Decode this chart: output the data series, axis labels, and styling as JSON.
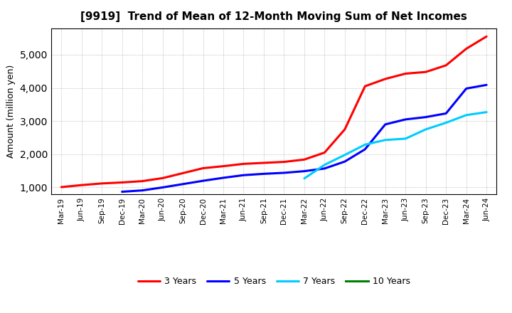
{
  "title": "[9919]  Trend of Mean of 12-Month Moving Sum of Net Incomes",
  "ylabel": "Amount (million yen)",
  "x_labels": [
    "Mar-19",
    "Jun-19",
    "Sep-19",
    "Dec-19",
    "Mar-20",
    "Jun-20",
    "Sep-20",
    "Dec-20",
    "Mar-21",
    "Jun-21",
    "Sep-21",
    "Dec-21",
    "Mar-22",
    "Jun-22",
    "Sep-22",
    "Dec-22",
    "Mar-23",
    "Jun-23",
    "Sep-23",
    "Dec-23",
    "Mar-24",
    "Jun-24"
  ],
  "series": {
    "3 Years": {
      "color": "#FF0000",
      "data_x": [
        0,
        1,
        2,
        3,
        4,
        5,
        6,
        7,
        8,
        9,
        10,
        11,
        12,
        13,
        14,
        15,
        16,
        17,
        18,
        19,
        20,
        21
      ],
      "data_y": [
        1010,
        1070,
        1120,
        1150,
        1190,
        1280,
        1430,
        1580,
        1640,
        1710,
        1740,
        1770,
        1840,
        2050,
        2750,
        4050,
        4270,
        4430,
        4480,
        4680,
        5180,
        5550
      ]
    },
    "5 Years": {
      "color": "#0000FF",
      "data_x": [
        3,
        4,
        5,
        6,
        7,
        8,
        9,
        10,
        11,
        12,
        13,
        14,
        15,
        16,
        17,
        18,
        19,
        20,
        21
      ],
      "data_y": [
        870,
        910,
        1000,
        1100,
        1200,
        1290,
        1370,
        1410,
        1440,
        1490,
        1570,
        1780,
        2150,
        2900,
        3050,
        3120,
        3230,
        3980,
        4090
      ]
    },
    "7 Years": {
      "color": "#00CCFF",
      "data_x": [
        12,
        13,
        14,
        15,
        16,
        17,
        18,
        19,
        20,
        21
      ],
      "data_y": [
        1270,
        1680,
        1980,
        2290,
        2430,
        2470,
        2750,
        2950,
        3180,
        3270
      ]
    },
    "10 Years": {
      "color": "#008000",
      "data_x": [],
      "data_y": []
    }
  },
  "ylim": [
    800,
    5800
  ],
  "yticks": [
    1000,
    2000,
    3000,
    4000,
    5000
  ],
  "background_color": "#FFFFFF",
  "grid_color": "#999999",
  "linewidth": 2.2
}
